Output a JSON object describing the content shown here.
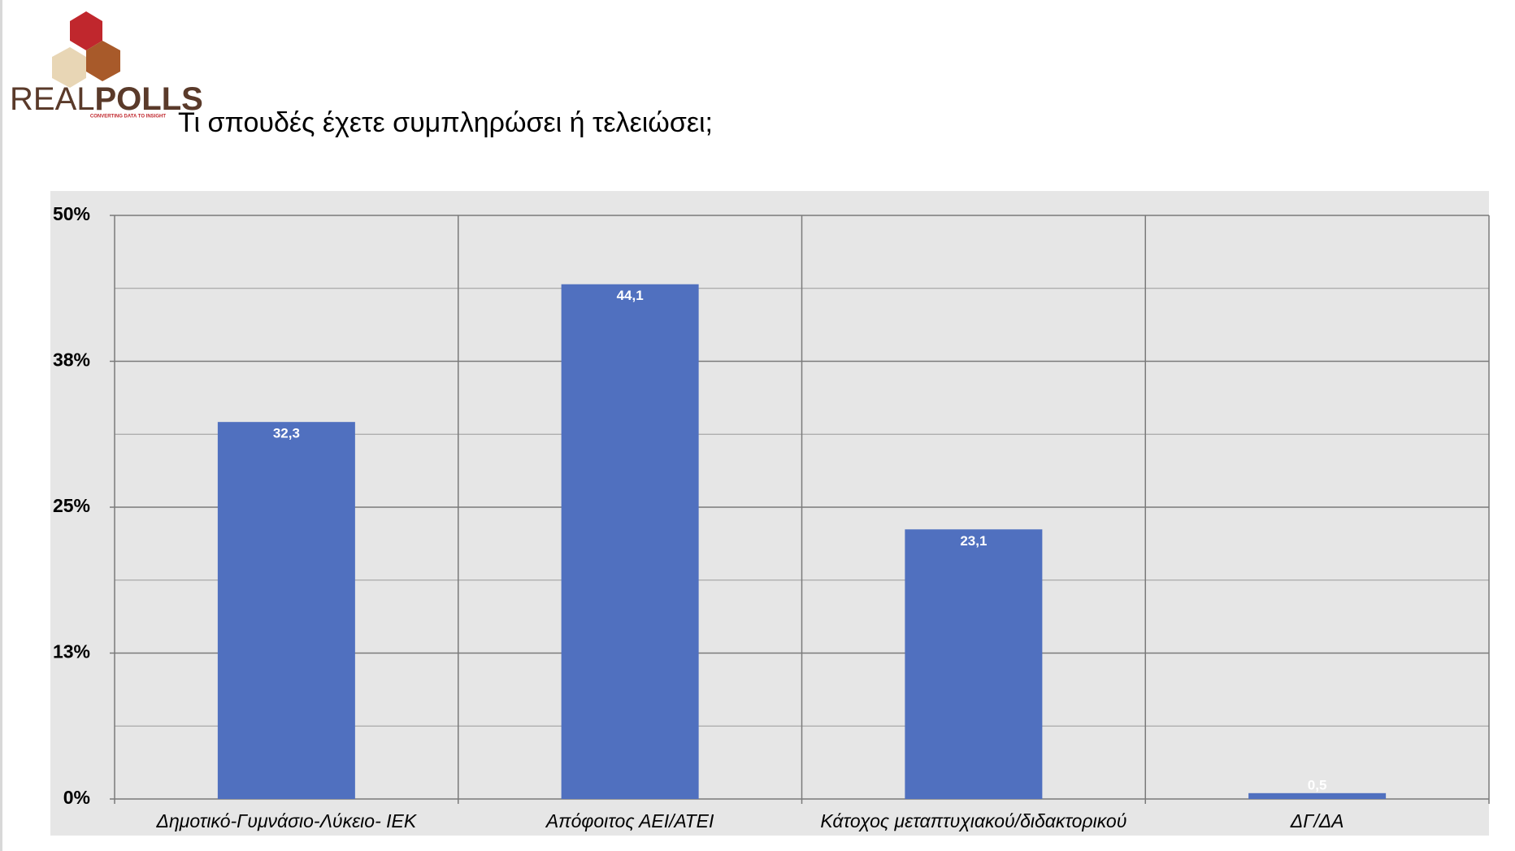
{
  "logo": {
    "text_light": "REAL",
    "text_bold": "POLLS",
    "tagline": "CONVERTING DATA TO INSIGHT"
  },
  "chart_data": {
    "type": "bar",
    "title": "Τι σπουδές έχετε συμπληρώσει ή τελειώσει;",
    "categories": [
      "Δημοτικό-Γυμνάσιο-Λύκειο- ΙΕΚ",
      "Απόφοιτος ΑΕΙ/ΑΤΕΙ",
      "Κάτοχος μεταπτυχιακού/διδακτορικού",
      "ΔΓ/ΔΑ"
    ],
    "values": [
      32.3,
      44.1,
      23.1,
      0.5
    ],
    "value_labels": [
      "32,3",
      "44,1",
      "23,1",
      "0,5"
    ],
    "color": "#5070bf",
    "ylim": [
      0,
      50
    ],
    "yticks": [
      {
        "value": 0,
        "label": "0%"
      },
      {
        "value": 12.5,
        "label": "13%"
      },
      {
        "value": 25,
        "label": "25%"
      },
      {
        "value": 37.5,
        "label": "38%"
      },
      {
        "value": 50,
        "label": "50%"
      }
    ],
    "minor_yticks": [
      6.25,
      18.75,
      31.25,
      43.75
    ],
    "grid": true
  }
}
